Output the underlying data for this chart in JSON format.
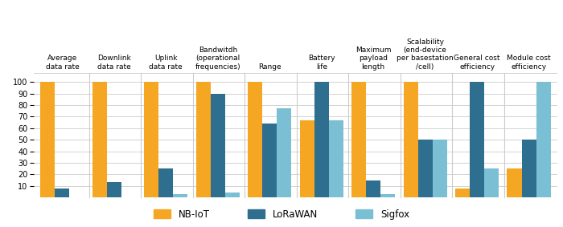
{
  "categories": [
    "Average\ndata rate",
    "Downlink\ndata rate",
    "Uplink\ndata rate",
    "Bandwitdh\n(operational\nfrequencies)",
    "Range",
    "Battery\nlife",
    "Maximum\npayload\nlength",
    "Scalability\n(end-device\nper basestation\n/cell)",
    "General cost\nefficiency",
    "Module cost\nefficiency"
  ],
  "nb_iot": [
    100,
    100,
    100,
    100,
    100,
    67,
    100,
    100,
    8,
    25
  ],
  "lorawan": [
    8,
    13,
    25,
    90,
    64,
    100,
    15,
    50,
    100,
    50
  ],
  "sigfox": [
    0,
    0,
    3,
    4,
    77,
    67,
    3,
    50,
    25,
    100
  ],
  "color_nb": "#F5A623",
  "color_lorawan": "#2E6E8E",
  "color_sigfox": "#7BBFD4",
  "tick_fontsize": 7,
  "label_fontsize": 6.5,
  "legend_fontsize": 8.5,
  "bar_width": 0.28,
  "ylim": [
    0,
    108
  ],
  "yticks": [
    10,
    20,
    30,
    40,
    50,
    60,
    70,
    80,
    90,
    100
  ],
  "bg_color": "#FFFFFF",
  "grid_color": "#CCCCCC"
}
